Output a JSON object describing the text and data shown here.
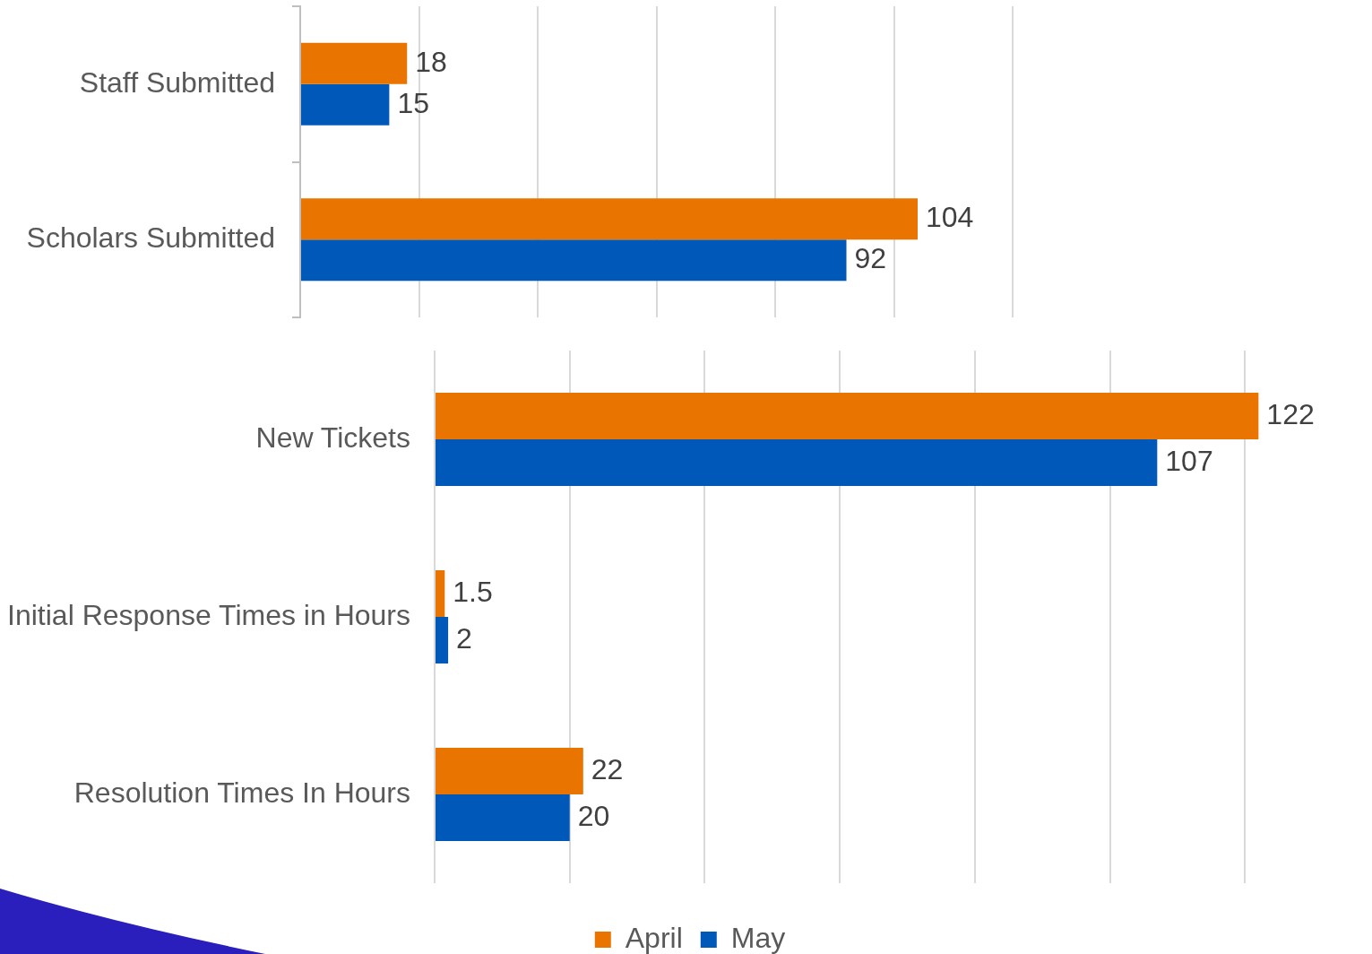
{
  "chart_data": [
    {
      "type": "bar",
      "orientation": "horizontal",
      "categories": [
        "Staff Submitted",
        "Scholars Submitted"
      ],
      "series": [
        {
          "color": "#e97400",
          "values": [
            18,
            104
          ]
        },
        {
          "color": "#0058b8",
          "values": [
            15,
            92
          ]
        }
      ],
      "grid": "x",
      "tick_labels": "y",
      "data_labels": true,
      "legend": false
    },
    {
      "type": "bar",
      "orientation": "horizontal",
      "categories": [
        "New Tickets",
        "Initial Response Times in Hours",
        "Resolution Times In Hours"
      ],
      "series": [
        {
          "name": "April",
          "color": "#e97400",
          "values": [
            122,
            1.5,
            22
          ]
        },
        {
          "name": "May",
          "color": "#0058b8",
          "values": [
            107,
            2,
            20
          ]
        }
      ],
      "grid": "x",
      "tick_labels": "y",
      "data_labels": true,
      "legend": "bottom"
    }
  ]
}
